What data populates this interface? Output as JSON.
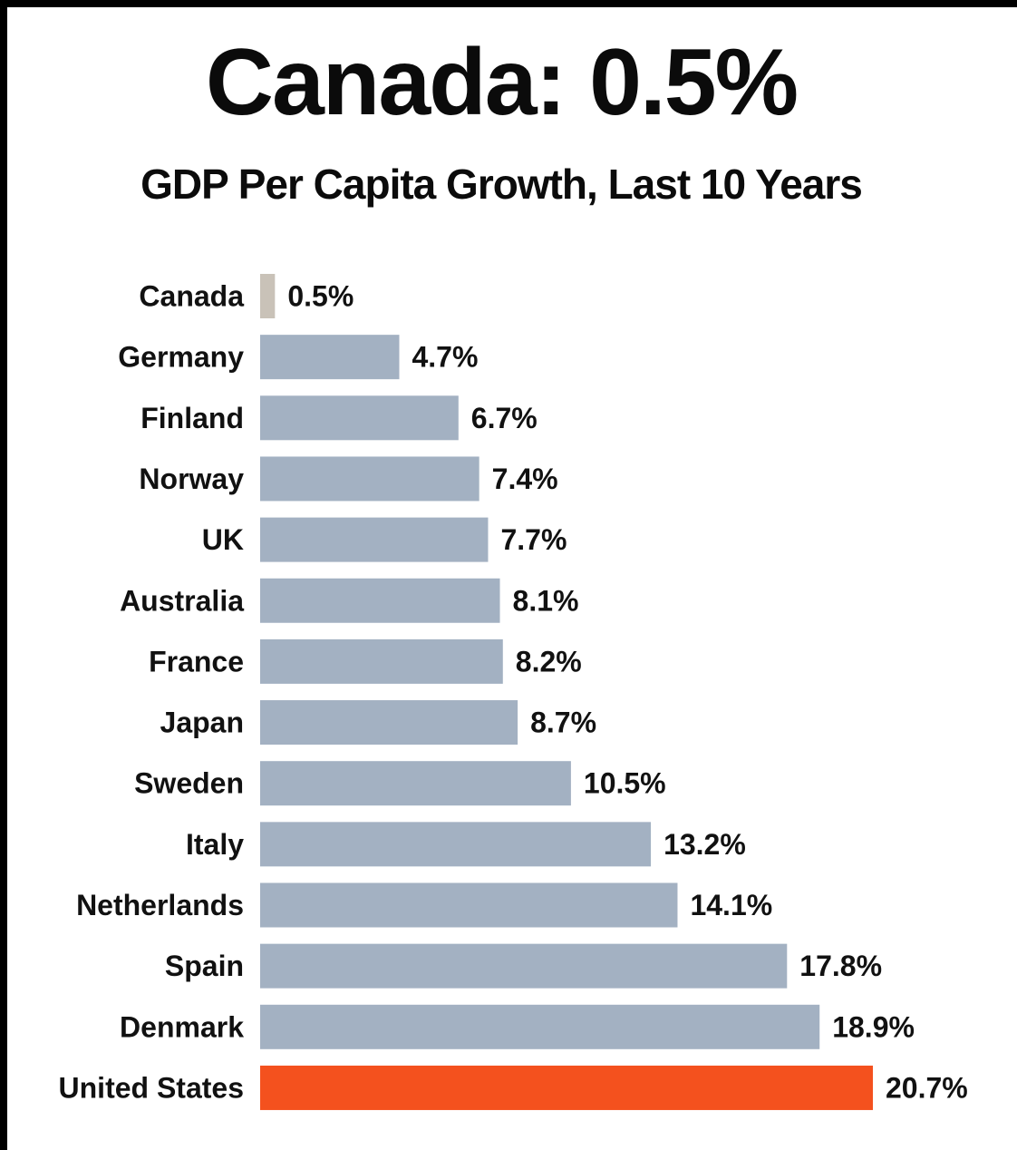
{
  "chart_data": {
    "type": "bar",
    "orientation": "horizontal",
    "title": "Canada: 0.5%",
    "subtitle": "GDP Per Capita Growth, Last 10 Years",
    "categories": [
      "Canada",
      "Germany",
      "Finland",
      "Norway",
      "UK",
      "Australia",
      "France",
      "Japan",
      "Sweden",
      "Italy",
      "Netherlands",
      "Spain",
      "Denmark",
      "United States"
    ],
    "values": [
      0.5,
      4.7,
      6.7,
      7.4,
      7.7,
      8.1,
      8.2,
      8.7,
      10.5,
      13.2,
      14.1,
      17.8,
      18.9,
      20.7
    ],
    "value_labels": [
      "0.5%",
      "4.7%",
      "6.7%",
      "7.4%",
      "7.7%",
      "8.1%",
      "8.2%",
      "8.7%",
      "10.5%",
      "13.2%",
      "14.1%",
      "17.8%",
      "18.9%",
      "20.7%"
    ],
    "unit": "%",
    "xlim": [
      0,
      20.7
    ],
    "grid": false,
    "legend": "none"
  },
  "colors": {
    "default_bar": "#a3b1c2",
    "canada_bar": "#c9c2b8",
    "highlight_bar": "#f4511e",
    "text": "#111111",
    "background": "#ffffff"
  },
  "highlight": {
    "Canada": "canada_bar",
    "United States": "highlight_bar"
  }
}
